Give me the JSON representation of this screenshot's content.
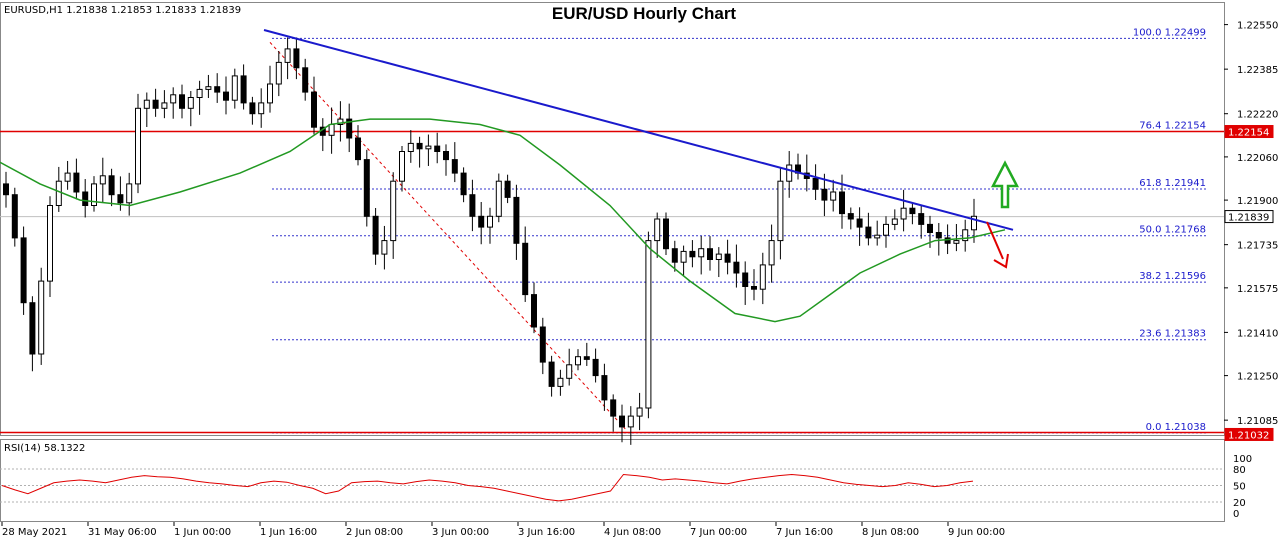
{
  "symbol_info": "EURUSD,H1  1.21838 1.21853 1.21833 1.21839",
  "colors": {
    "trendline": "#1a1acc",
    "ma": "#229922",
    "resistance": "#e00000",
    "fib": "#3333cc",
    "rsi": "#e00000",
    "bull_arrow": "#22aa22",
    "bear_arrow": "#e00000"
  },
  "chart_data": {
    "type": "candlestick",
    "title": "EUR/USD Hourly Chart",
    "ylim": [
      1.2103,
      1.2263
    ],
    "y_ticks": [
      "1.22550",
      "1.22385",
      "1.22220",
      "1.22060",
      "1.21900",
      "1.21735",
      "1.21575",
      "1.21410",
      "1.21250",
      "1.21085"
    ],
    "x_ticks": [
      "28 May 2021",
      "31 May 06:00",
      "1 Jun 00:00",
      "1 Jun 16:00",
      "2 Jun 08:00",
      "3 Jun 00:00",
      "3 Jun 16:00",
      "4 Jun 08:00",
      "7 Jun 00:00",
      "7 Jun 16:00",
      "8 Jun 08:00",
      "9 Jun 00:00"
    ],
    "price_path": [
      1.2192,
      1.2176,
      1.2152,
      1.2133,
      1.216,
      1.2188,
      1.2197,
      1.22,
      1.2193,
      1.2188,
      1.2196,
      1.2199,
      1.2192,
      1.2189,
      1.2196,
      1.2224,
      1.2227,
      1.2224,
      1.2226,
      1.2229,
      1.2224,
      1.2228,
      1.2231,
      1.2232,
      1.223,
      1.2227,
      1.2236,
      1.2226,
      1.2222,
      1.2226,
      1.2233,
      1.2241,
      1.2246,
      1.2239,
      1.223,
      1.2217,
      1.2214,
      1.2218,
      1.222,
      1.2213,
      1.2205,
      1.2184,
      1.217,
      1.2175,
      1.2197,
      1.2208,
      1.2211,
      1.2209,
      1.221,
      1.2208,
      1.2205,
      1.22,
      1.2192,
      1.2184,
      1.218,
      1.2184,
      1.2197,
      1.2191,
      1.2174,
      1.2155,
      1.2143,
      1.213,
      1.2121,
      1.2124,
      1.2129,
      1.2132,
      1.2131,
      1.2125,
      1.2116,
      1.211,
      1.2106,
      1.211,
      1.2113,
      1.2175,
      1.2183,
      1.2172,
      1.2167,
      1.2171,
      1.2169,
      1.2172,
      1.2168,
      1.217,
      1.2167,
      1.2163,
      1.2158,
      1.2157,
      1.2166,
      1.2175,
      1.2197,
      1.2203,
      1.22,
      1.2198,
      1.2194,
      1.219,
      1.2193,
      1.2185,
      1.2183,
      1.218,
      1.2176,
      1.2177,
      1.2181,
      1.2183,
      1.2187,
      1.2185,
      1.2181,
      1.2178,
      1.2176,
      1.2174,
      1.2175,
      1.2179,
      1.2184
    ],
    "moving_average": [
      1.2204,
      1.2196,
      1.219,
      1.2188,
      1.2193,
      1.22,
      1.2208,
      1.2218,
      1.222,
      1.222,
      1.2218,
      1.2214,
      1.2203,
      1.2188,
      1.2172,
      1.216,
      1.2148,
      1.2145,
      1.2147,
      1.2155,
      1.2163,
      1.217,
      1.2175,
      1.2176,
      1.2179
    ],
    "ma_x": [
      0,
      40,
      80,
      130,
      180,
      240,
      290,
      330,
      370,
      430,
      480,
      520,
      560,
      610,
      650,
      690,
      735,
      775,
      800,
      830,
      860,
      900,
      935,
      970,
      1005
    ],
    "trendline": {
      "from": 1.2253,
      "to": 1.2179
    },
    "fib_levels": [
      {
        "ratio": "100.0",
        "value": "1.22499"
      },
      {
        "ratio": "76.4",
        "value": "1.22154"
      },
      {
        "ratio": "61.8",
        "value": "1.21941"
      },
      {
        "ratio": "50.0",
        "value": "1.21768"
      },
      {
        "ratio": "38.2",
        "value": "1.21596"
      },
      {
        "ratio": "23.6",
        "value": "1.21383"
      },
      {
        "ratio": "0.0",
        "value": "1.21038"
      }
    ],
    "resistance": "1.22154",
    "support": "1.21032",
    "current_price": "1.21839",
    "rsi": {
      "label": "RSI(14) 58.1322",
      "ticks": [
        "100",
        "80",
        "50",
        "20",
        "0"
      ],
      "values": [
        50,
        42,
        35,
        45,
        55,
        58,
        60,
        58,
        55,
        60,
        65,
        68,
        66,
        65,
        62,
        58,
        55,
        53,
        50,
        48,
        55,
        58,
        56,
        50,
        45,
        35,
        40,
        55,
        57,
        58,
        55,
        53,
        57,
        60,
        58,
        55,
        50,
        48,
        45,
        40,
        35,
        30,
        25,
        22,
        25,
        30,
        35,
        40,
        70,
        68,
        65,
        60,
        62,
        60,
        58,
        55,
        53,
        58,
        62,
        65,
        68,
        70,
        68,
        65,
        60,
        55,
        52,
        50,
        48,
        50,
        55,
        52,
        48,
        50,
        55,
        58
      ]
    }
  }
}
